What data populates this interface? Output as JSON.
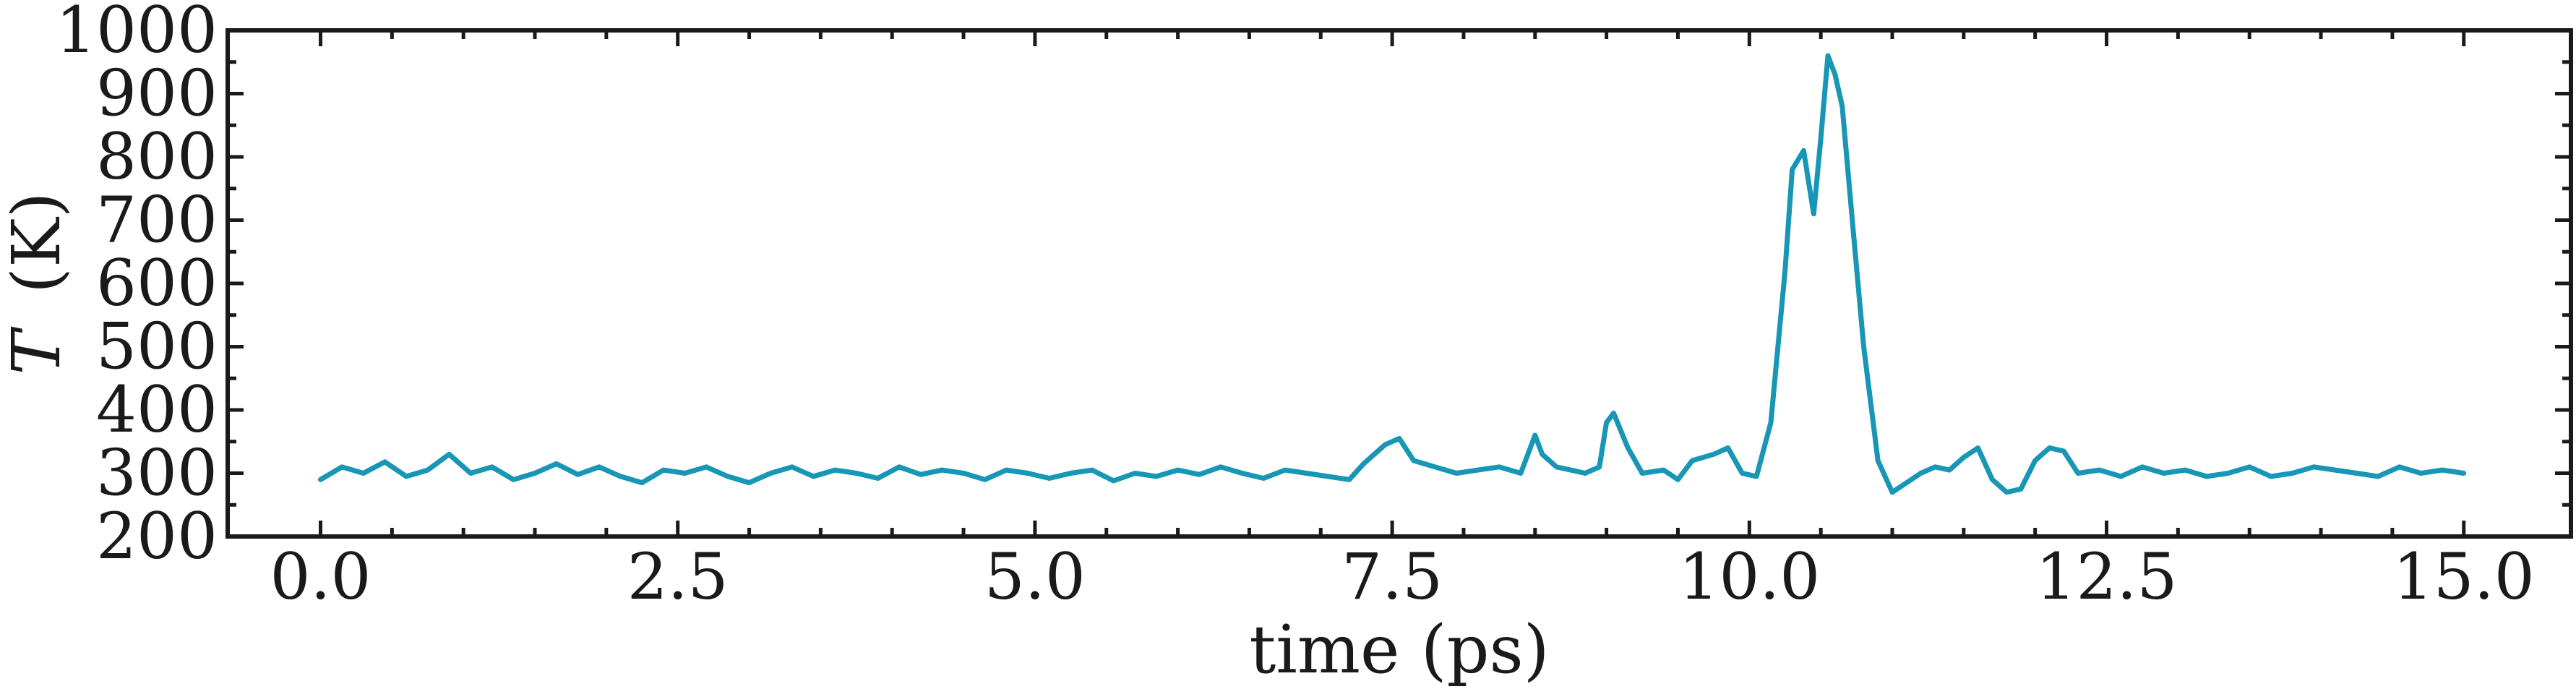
{
  "chart_data": {
    "type": "line",
    "title": "",
    "xlabel": "time (ps)",
    "ylabel_symbol": "T",
    "ylabel_unit": "(K)",
    "xlim": [
      -0.65,
      15.75
    ],
    "ylim": [
      200,
      1000
    ],
    "xticks": [
      0.0,
      2.5,
      5.0,
      7.5,
      10.0,
      12.5,
      15.0
    ],
    "xtick_labels": [
      "0.0",
      "2.5",
      "5.0",
      "7.5",
      "10.0",
      "12.5",
      "15.0"
    ],
    "yticks": [
      200,
      300,
      400,
      500,
      600,
      700,
      800,
      900,
      1000
    ],
    "ytick_labels": [
      "200",
      "300",
      "400",
      "500",
      "600",
      "700",
      "800",
      "900",
      "1000"
    ],
    "grid": false,
    "legend": "none",
    "series": [
      {
        "color": "#1797b5",
        "x": [
          0.0,
          0.15,
          0.3,
          0.45,
          0.6,
          0.75,
          0.9,
          1.05,
          1.2,
          1.35,
          1.5,
          1.65,
          1.8,
          1.95,
          2.1,
          2.25,
          2.4,
          2.55,
          2.7,
          2.85,
          3.0,
          3.15,
          3.3,
          3.45,
          3.6,
          3.75,
          3.9,
          4.05,
          4.2,
          4.35,
          4.5,
          4.65,
          4.8,
          4.95,
          5.1,
          5.25,
          5.4,
          5.55,
          5.7,
          5.85,
          6.0,
          6.15,
          6.3,
          6.45,
          6.6,
          6.75,
          6.9,
          7.05,
          7.2,
          7.3,
          7.45,
          7.55,
          7.65,
          7.8,
          7.95,
          8.1,
          8.25,
          8.4,
          8.5,
          8.55,
          8.65,
          8.75,
          8.85,
          8.95,
          9.0,
          9.05,
          9.15,
          9.25,
          9.4,
          9.5,
          9.6,
          9.75,
          9.85,
          9.95,
          10.05,
          10.15,
          10.25,
          10.3,
          10.38,
          10.45,
          10.5,
          10.55,
          10.6,
          10.65,
          10.72,
          10.8,
          10.9,
          11.0,
          11.1,
          11.2,
          11.3,
          11.4,
          11.5,
          11.6,
          11.7,
          11.8,
          11.9,
          12.0,
          12.1,
          12.2,
          12.3,
          12.45,
          12.6,
          12.75,
          12.9,
          13.05,
          13.2,
          13.35,
          13.5,
          13.65,
          13.8,
          13.95,
          14.1,
          14.25,
          14.4,
          14.55,
          14.7,
          14.85,
          15.0
        ],
        "y": [
          290,
          310,
          300,
          318,
          295,
          305,
          330,
          300,
          310,
          290,
          300,
          315,
          298,
          310,
          295,
          285,
          305,
          300,
          310,
          295,
          285,
          300,
          310,
          295,
          305,
          300,
          292,
          310,
          298,
          305,
          300,
          290,
          305,
          300,
          292,
          300,
          305,
          288,
          300,
          295,
          305,
          298,
          310,
          300,
          292,
          305,
          300,
          295,
          290,
          315,
          345,
          355,
          320,
          310,
          300,
          305,
          310,
          300,
          360,
          330,
          310,
          305,
          300,
          310,
          380,
          395,
          340,
          300,
          305,
          290,
          320,
          330,
          340,
          300,
          295,
          380,
          620,
          780,
          810,
          710,
          830,
          960,
          930,
          880,
          700,
          500,
          320,
          270,
          285,
          300,
          310,
          305,
          325,
          340,
          290,
          270,
          275,
          320,
          340,
          335,
          300,
          305,
          295,
          310,
          300,
          305,
          295,
          300,
          310,
          295,
          300,
          310,
          305,
          300,
          295,
          310,
          300,
          305,
          300
        ]
      }
    ]
  }
}
